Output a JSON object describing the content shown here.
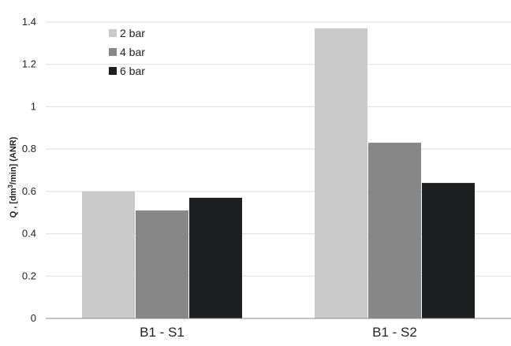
{
  "chart_data": {
    "type": "bar",
    "categories": [
      "B1 - S1",
      "B1 - S2"
    ],
    "series": [
      {
        "name": "2 bar",
        "values": [
          0.6,
          1.37
        ],
        "color": "#c9c9c9"
      },
      {
        "name": "4 bar",
        "values": [
          0.51,
          0.83
        ],
        "color": "#878787"
      },
      {
        "name": "6 bar",
        "values": [
          0.57,
          0.64
        ],
        "color": "#1d1e20"
      }
    ],
    "title": "",
    "xlabel": "",
    "ylabel_parts": {
      "pre": "Q , [dm",
      "sup": "3",
      "post": "/min] (ANR)"
    },
    "ylim": [
      0,
      1.4
    ],
    "yticks": [
      0,
      0.2,
      0.4,
      0.6,
      0.8,
      1,
      1.2,
      1.4
    ],
    "ytick_labels": [
      "0",
      "0.2",
      "0.4",
      "0.6",
      "0.8",
      "1",
      "1.2",
      "1.4"
    ],
    "grid": true,
    "legend_position": "top-left"
  }
}
